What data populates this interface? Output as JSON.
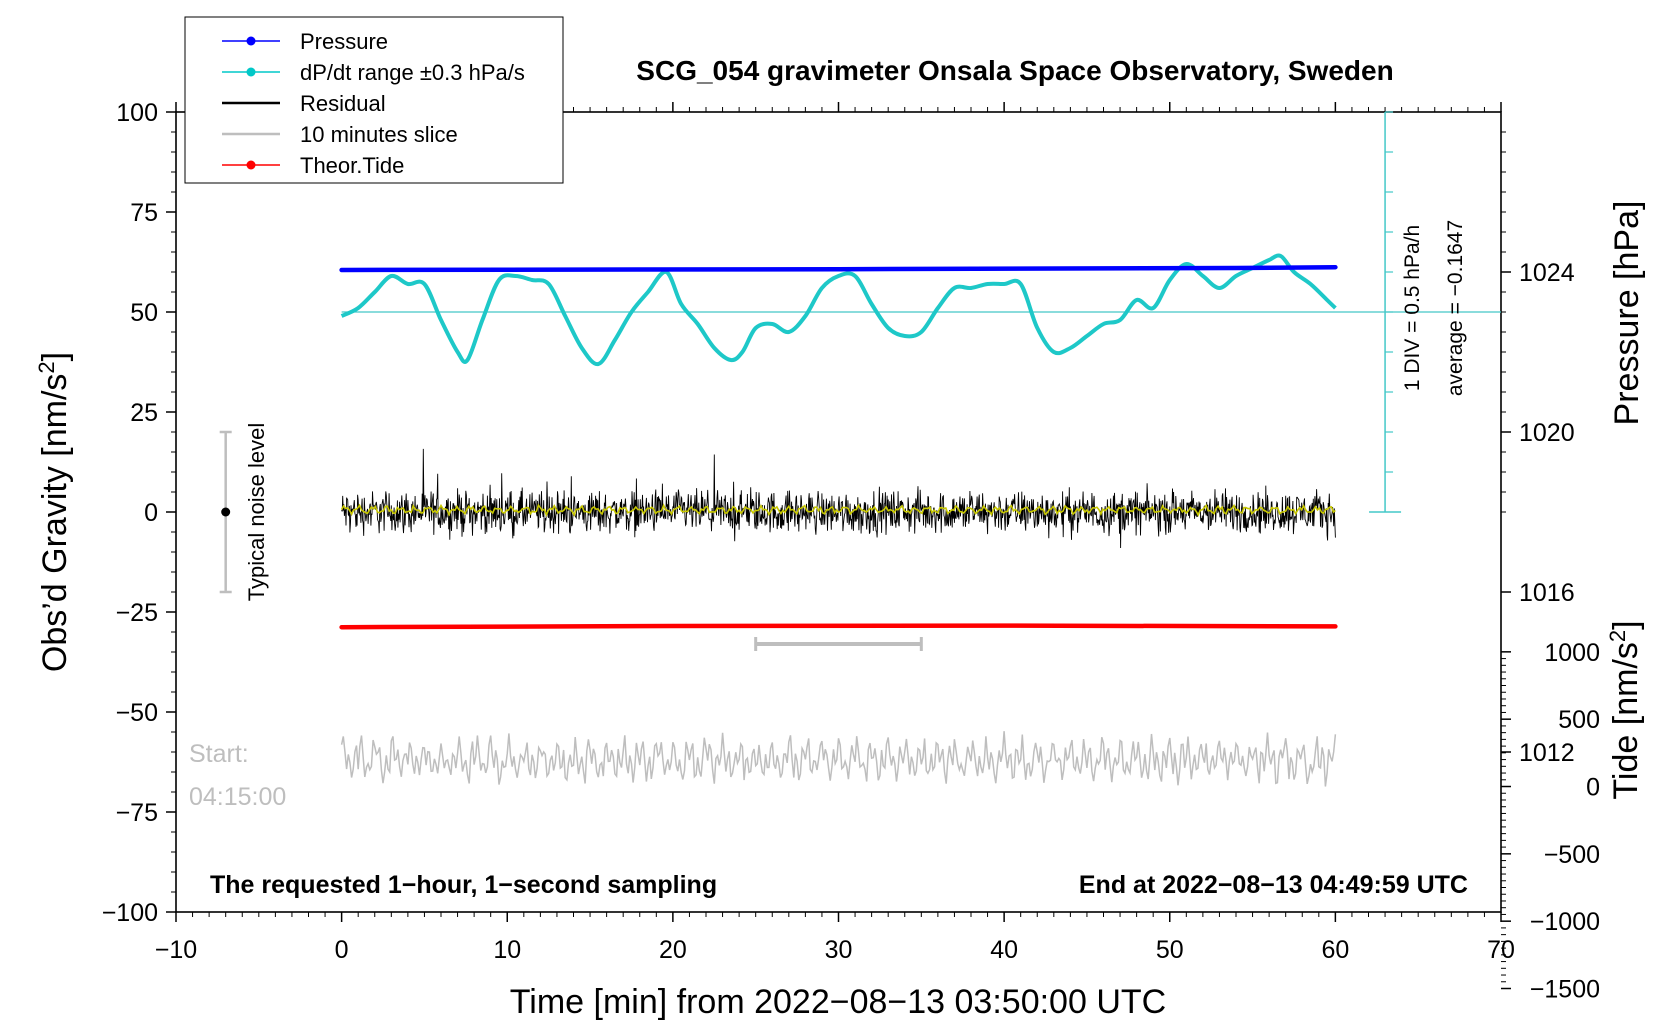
{
  "chart_data": {
    "type": "line",
    "title": "SCG_054 gravimeter Onsala Space Observatory, Sweden",
    "xlabel": "Time [min] from 2022−08−13 03:50:00 UTC",
    "ylabel_left": "Obs’d Gravity [nm/s",
    "ylabel_left_sup": "2",
    "ylabel_left_end": "]",
    "ylabel_pressure": "Pressure [hPa]",
    "ylabel_tide": "Tide [nm/s",
    "ylabel_tide_sup": "2",
    "ylabel_tide_end": "]",
    "xlim": [
      -10,
      70
    ],
    "ylim": [
      -100,
      100
    ],
    "x_ticks": [
      "−10",
      "0",
      "10",
      "20",
      "30",
      "40",
      "50",
      "60",
      "70"
    ],
    "x_tick_values": [
      -10,
      0,
      10,
      20,
      30,
      40,
      50,
      60,
      70
    ],
    "y_ticks": [
      "100",
      "75",
      "50",
      "25",
      "0",
      "−25",
      "−50",
      "−75",
      "−100"
    ],
    "y_tick_values": [
      100,
      75,
      50,
      25,
      0,
      -25,
      -50,
      -75,
      -100
    ],
    "pressure_axis": {
      "range": [
        1008,
        1028
      ],
      "ticks": [
        "1012",
        "1016",
        "1020",
        "1024"
      ],
      "tick_values": [
        1012,
        1016,
        1020,
        1024
      ]
    },
    "tide_axis": {
      "range": [
        -1500,
        1000
      ],
      "ticks": [
        "1000",
        "500",
        "0",
        "−500",
        "−1000",
        "−1500"
      ],
      "tick_values": [
        1000,
        500,
        0,
        -500,
        -1000,
        -1500
      ]
    },
    "legend": {
      "position": "top-left",
      "entries": [
        {
          "label": "Pressure",
          "color": "#0000ff",
          "marker": true
        },
        {
          "label": "dP/dt range ±0.3 hPa/s",
          "color": "#00c8c8",
          "marker": true
        },
        {
          "label": "Residual",
          "color": "#000000",
          "marker": false
        },
        {
          "label": "10 minutes slice",
          "color": "#bebebe",
          "marker": false
        },
        {
          "label": "Theor.Tide",
          "color": "#ff0000",
          "marker": true
        }
      ]
    },
    "series": [
      {
        "name": "Pressure",
        "color": "#0000ff",
        "x": [
          0,
          14,
          30,
          54,
          60
        ],
        "y": [
          60.5,
          60.6,
          60.7,
          61.0,
          61.2
        ]
      },
      {
        "name": "dP/dt",
        "color": "#1ec8c8",
        "x": [
          0,
          1,
          2,
          3,
          4,
          5,
          6,
          7,
          7.6,
          8.5,
          9.5,
          10.5,
          11.5,
          12.5,
          13.5,
          14.5,
          15.5,
          16.5,
          17.5,
          18.5,
          19.6,
          20.5,
          21.5,
          22.5,
          23.5,
          24.2,
          25,
          26,
          27,
          28,
          29,
          30,
          31,
          32,
          33,
          34,
          35,
          36,
          37,
          38,
          39,
          40,
          41,
          42,
          43,
          44,
          45,
          46,
          47,
          48,
          49,
          50,
          51,
          52,
          53,
          54,
          55,
          56,
          56.7,
          57.5,
          58.5,
          59.5,
          60
        ],
        "y": [
          49,
          51,
          55,
          59,
          57,
          57,
          48,
          40,
          38,
          48,
          58,
          59,
          58,
          57,
          49,
          41,
          37,
          43,
          50,
          55,
          60,
          52,
          47,
          41,
          38,
          40,
          46,
          47,
          45,
          49,
          56,
          59,
          59,
          52,
          46,
          44,
          45,
          51,
          56,
          56,
          57,
          57,
          57,
          46,
          40,
          41,
          44,
          47,
          48,
          53,
          51,
          58,
          62,
          59,
          56,
          59,
          61,
          63,
          64,
          60,
          57,
          53,
          51
        ]
      },
      {
        "name": "Residual",
        "color": "#000000",
        "x_range": [
          0,
          60
        ],
        "center": 0,
        "amplitude": 4
      },
      {
        "name": "Smoothed residual",
        "color": "#c8c800",
        "x_range": [
          0,
          60
        ],
        "center": 0.5
      },
      {
        "name": "Theor.Tide",
        "color": "#ff0000",
        "x": [
          0,
          20,
          40,
          60
        ],
        "y": [
          -28.8,
          -28.5,
          -28.4,
          -28.6
        ]
      },
      {
        "name": "10 minutes slice",
        "color": "#bebebe",
        "x_range": [
          0,
          60
        ],
        "center": -62
      }
    ],
    "reference_line": {
      "y": 50,
      "color": "#44c8c8"
    },
    "scale_bar": {
      "x": 63,
      "y_top": 100,
      "y_bottom": 0,
      "label_1": "1 DIV = 0.5 hPa/h",
      "label_2": "average = −0.1647"
    },
    "noise_level": {
      "x": -7,
      "y_top": 20,
      "y_bottom": -20,
      "label": "Typical noise level"
    },
    "slice_bar": {
      "x_start": 25,
      "x_end": 35,
      "y": -33
    },
    "start_label_1": "Start:",
    "start_label_2": "04:15:00",
    "footer_left": "The requested 1−hour, 1−second sampling",
    "footer_right": "End at 2022−08−13 04:49:59 UTC"
  }
}
